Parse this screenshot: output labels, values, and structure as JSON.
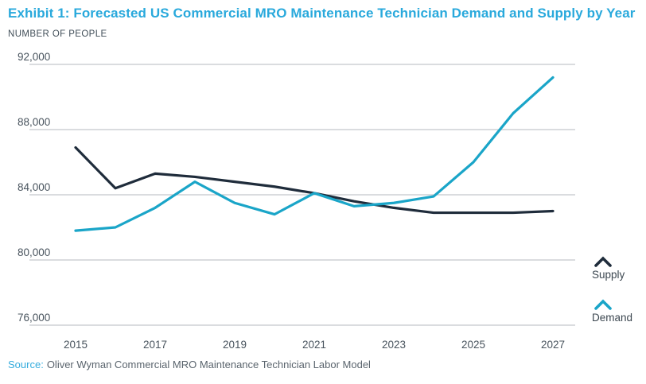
{
  "header": {
    "title": "Exhibit 1: Forecasted US Commercial MRO Maintenance Technician Demand and Supply by Year",
    "y_axis_unit": "NUMBER OF PEOPLE"
  },
  "chart_data": {
    "type": "line",
    "title": "Forecasted US Commercial MRO Maintenance Technician Demand and Supply by Year",
    "ylabel": "NUMBER OF PEOPLE",
    "x": [
      2015,
      2016,
      2017,
      2018,
      2019,
      2020,
      2021,
      2022,
      2023,
      2024,
      2025,
      2026,
      2027
    ],
    "series": [
      {
        "name": "Supply",
        "color": "#1f2c3b",
        "values": [
          86900,
          84400,
          85300,
          85100,
          84800,
          84500,
          84100,
          83600,
          83200,
          82900,
          82900,
          82900,
          83000
        ]
      },
      {
        "name": "Demand",
        "color": "#1aa5c8",
        "values": [
          81800,
          82000,
          83200,
          84800,
          83500,
          82800,
          84100,
          83300,
          83500,
          83900,
          86000,
          89000,
          91200
        ]
      }
    ],
    "ylim": [
      76000,
      92000
    ],
    "yticks": [
      {
        "value": 92000,
        "label": "92,000"
      },
      {
        "value": 88000,
        "label": "88,000"
      },
      {
        "value": 84000,
        "label": "84,000"
      },
      {
        "value": 80000,
        "label": "80,000"
      },
      {
        "value": 76000,
        "label": "76,000"
      }
    ],
    "xticks": [
      "2015",
      "2017",
      "2019",
      "2021",
      "2023",
      "2025",
      "2027"
    ],
    "grid": "horizontal-only",
    "legend_position": "right-bottom"
  },
  "source": {
    "label": "Source:",
    "text": "Oliver Wyman Commercial MRO Maintenance Technician Labor Model"
  },
  "colors": {
    "title": "#29a9dc",
    "supply_line": "#1f2c3b",
    "demand_line": "#1aa5c8",
    "gridline": "#b5babf",
    "tick_text": "#49545e",
    "source_label": "#35acdd"
  }
}
